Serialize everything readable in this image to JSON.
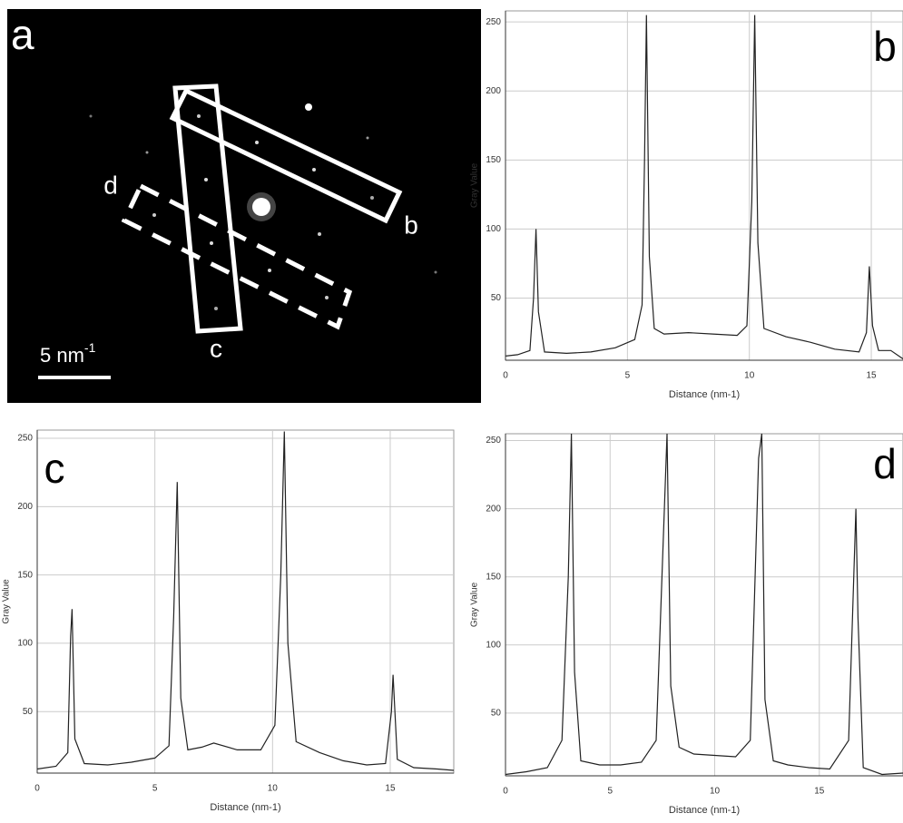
{
  "image_panel": {
    "panel_label": "a",
    "scale_bar_label": "5 nm",
    "scale_bar_exponent": "-1",
    "roi_labels": [
      "b",
      "c",
      "d"
    ]
  },
  "chart_data": [
    {
      "type": "line",
      "panel_label": "b",
      "x_label": "Distance (nm-1)",
      "y_label": "Gray Value",
      "xlim": [
        0,
        16.3
      ],
      "ylim": [
        5,
        258
      ],
      "xticks": [
        0,
        5,
        10,
        15
      ],
      "yticks": [
        50,
        100,
        150,
        200,
        250
      ],
      "grid": true,
      "color": "#222222",
      "x": [
        0,
        0.5,
        1.0,
        1.15,
        1.25,
        1.35,
        1.6,
        2.5,
        3.5,
        4.5,
        5.3,
        5.6,
        5.7,
        5.78,
        5.9,
        6.1,
        6.5,
        7.5,
        8.5,
        9.5,
        9.9,
        10.1,
        10.22,
        10.35,
        10.6,
        11.5,
        12.5,
        13.5,
        14.5,
        14.8,
        14.92,
        15.05,
        15.3,
        15.8,
        16.3
      ],
      "values": [
        8,
        9,
        12,
        50,
        100,
        40,
        11,
        10,
        11,
        14,
        20,
        45,
        150,
        255,
        80,
        28,
        24,
        25,
        24,
        23,
        30,
        120,
        255,
        90,
        28,
        22,
        18,
        13,
        11,
        25,
        73,
        30,
        12,
        12,
        6
      ]
    },
    {
      "type": "line",
      "panel_label": "c",
      "x_label": "Distance (nm-1)",
      "y_label": "Gray Value",
      "xlim": [
        0,
        17.7
      ],
      "ylim": [
        5,
        256
      ],
      "xticks": [
        0,
        5,
        10,
        15
      ],
      "yticks": [
        50,
        100,
        150,
        200,
        250
      ],
      "grid": true,
      "color": "#222222",
      "x": [
        0,
        0.8,
        1.3,
        1.42,
        1.48,
        1.6,
        2.0,
        3.0,
        4.0,
        5.0,
        5.6,
        5.8,
        5.95,
        6.1,
        6.4,
        7.0,
        7.5,
        8.5,
        9.5,
        10.1,
        10.35,
        10.5,
        10.65,
        11.0,
        12.0,
        13.0,
        14.0,
        14.8,
        15.05,
        15.12,
        15.3,
        16.0,
        17.0,
        17.7
      ],
      "values": [
        8,
        10,
        20,
        105,
        125,
        30,
        12,
        11,
        13,
        16,
        25,
        120,
        218,
        60,
        22,
        24,
        27,
        22,
        22,
        40,
        150,
        255,
        100,
        28,
        20,
        14,
        11,
        12,
        50,
        77,
        15,
        9,
        8,
        7
      ]
    },
    {
      "type": "line",
      "panel_label": "d",
      "x_label": "Distance (nm-1)",
      "y_label": "Gray Value",
      "xlim": [
        0,
        19
      ],
      "ylim": [
        4,
        255
      ],
      "xticks": [
        0,
        5,
        10,
        15
      ],
      "yticks": [
        50,
        100,
        150,
        200,
        250
      ],
      "grid": true,
      "color": "#222222",
      "x": [
        0,
        1.0,
        2.0,
        2.7,
        3.0,
        3.15,
        3.3,
        3.6,
        4.5,
        5.5,
        6.5,
        7.2,
        7.55,
        7.72,
        7.9,
        8.3,
        9.0,
        10.0,
        11.0,
        11.7,
        12.1,
        12.25,
        12.4,
        12.8,
        13.5,
        14.5,
        15.5,
        16.4,
        16.75,
        16.85,
        17.1,
        18.0,
        19.0
      ],
      "values": [
        5,
        7,
        10,
        30,
        150,
        255,
        80,
        15,
        12,
        12,
        14,
        30,
        180,
        255,
        70,
        25,
        20,
        19,
        18,
        30,
        237,
        255,
        60,
        15,
        12,
        10,
        9,
        30,
        200,
        120,
        10,
        5,
        6
      ]
    }
  ]
}
